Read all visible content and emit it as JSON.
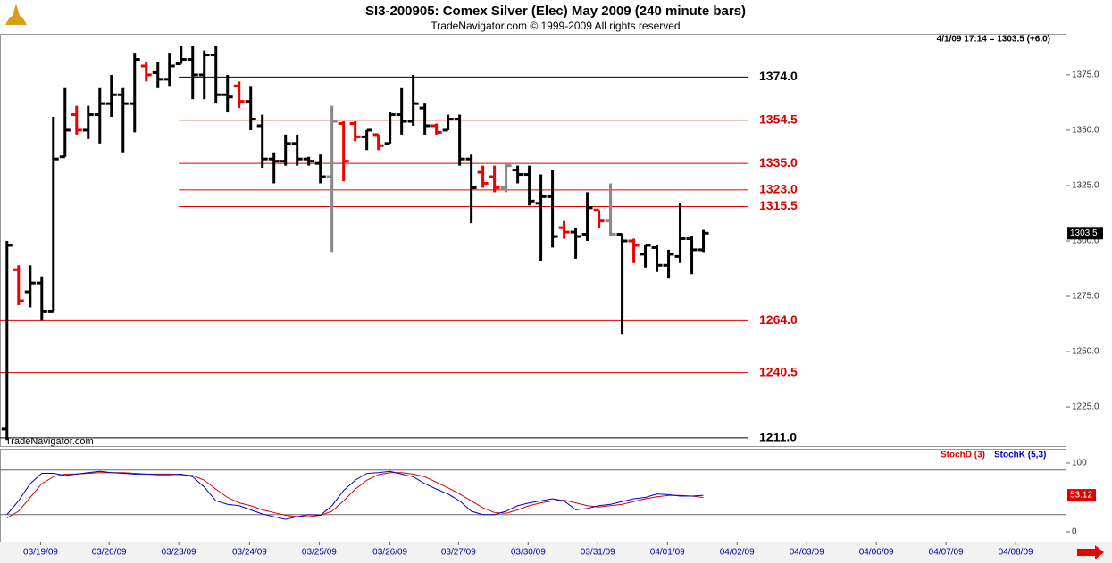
{
  "chart_data": [
    {
      "type": "ohlc",
      "title": "SI3-200905:  Comex Silver (Elec) May 2009  (240 minute bars)",
      "subtitle": "TradeNavigator.com © 1999-2009 All rights reserved",
      "info": "4/1/09 17:14 = 1303.5 (+6.0)",
      "watermark": "TradeNavigator.com",
      "open": [
        1215,
        1287,
        1277,
        1281,
        1268,
        1338,
        1357,
        1350,
        1357,
        1362,
        1366,
        1362,
        1379,
        1376,
        1373,
        1380,
        1382,
        1375,
        1384,
        1366,
        1370,
        1363,
        1352,
        1337,
        1336,
        1344,
        1337,
        1335,
        1329,
        1353,
        1353,
        1347,
        1348,
        1344,
        1357,
        1354,
        1360,
        1352,
        1350,
        1355,
        1337,
        1331,
        1329,
        1324,
        1332,
        1330,
        1317,
        1320,
        1306,
        1304,
        1303,
        1314,
        1309,
        1303,
        1300,
        1294,
        1297,
        1289,
        1293,
        1301,
        1296
      ],
      "high": [
        1300,
        1289,
        1289,
        1284,
        1356,
        1369,
        1361,
        1361,
        1369,
        1375,
        1369,
        1385,
        1381,
        1381,
        1385,
        1388,
        1388,
        1386,
        1388,
        1375,
        1372,
        1370,
        1357,
        1340,
        1348,
        1348,
        1338,
        1339,
        1361,
        1354,
        1354,
        1350,
        1348,
        1358,
        1369,
        1375,
        1362,
        1353,
        1357,
        1357,
        1339,
        1334,
        1334,
        1335,
        1334,
        1334,
        1330,
        1332,
        1309,
        1306,
        1322,
        1314,
        1326,
        1303,
        1301,
        1298,
        1298,
        1296,
        1317,
        1302,
        1305
      ],
      "low": [
        1210,
        1271,
        1270,
        1264,
        1268,
        1338,
        1348,
        1346,
        1344,
        1356,
        1340,
        1349,
        1372,
        1369,
        1370,
        1380,
        1364,
        1364,
        1362,
        1358,
        1360,
        1350,
        1333,
        1326,
        1334,
        1334,
        1334,
        1326,
        1295,
        1327,
        1345,
        1341,
        1341,
        1344,
        1348,
        1352,
        1348,
        1348,
        1350,
        1334,
        1308,
        1324,
        1322,
        1322,
        1326,
        1316,
        1291,
        1297,
        1301,
        1292,
        1300,
        1306,
        1302,
        1258,
        1290,
        1288,
        1286,
        1283,
        1290,
        1285,
        1295
      ],
      "close": [
        1298,
        1273,
        1281,
        1268,
        1337,
        1350,
        1350,
        1357,
        1362,
        1366,
        1362,
        1382,
        1375,
        1373,
        1379,
        1382,
        1375,
        1384,
        1366,
        1365,
        1363,
        1355,
        1337,
        1336,
        1344,
        1337,
        1336,
        1329,
        1354,
        1336,
        1347,
        1350,
        1343,
        1357,
        1354,
        1362,
        1352,
        1349,
        1355,
        1337,
        1324,
        1326,
        1324,
        1334,
        1330,
        1318,
        1320,
        1302,
        1304,
        1302,
        1315,
        1309,
        1303,
        1300,
        1298,
        1298,
        1289,
        1294,
        1301,
        1296,
        1303.5
      ],
      "bar_colors": [
        "#000",
        "#e00",
        "#000",
        "#000",
        "#000",
        "#000",
        "#e00",
        "#000",
        "#000",
        "#000",
        "#000",
        "#000",
        "#e00",
        "#000",
        "#000",
        "#000",
        "#000",
        "#000",
        "#000",
        "#000",
        "#e00",
        "#000",
        "#000",
        "#000",
        "#000",
        "#000",
        "#000",
        "#000",
        "#888",
        "#e00",
        "#e00",
        "#000",
        "#e00",
        "#000",
        "#000",
        "#000",
        "#000",
        "#e00",
        "#000",
        "#000",
        "#000",
        "#e00",
        "#e00",
        "#888",
        "#000",
        "#000",
        "#000",
        "#000",
        "#e00",
        "#000",
        "#000",
        "#e00",
        "#888",
        "#000",
        "#e00",
        "#000",
        "#000",
        "#000",
        "#000",
        "#000",
        "#000"
      ],
      "levels": [
        {
          "value": 1374,
          "label": "1374.0",
          "color": "#000"
        },
        {
          "value": 1354.5,
          "label": "1354.5",
          "color": "#d00"
        },
        {
          "value": 1335,
          "label": "1335.0",
          "color": "#d00"
        },
        {
          "value": 1323,
          "label": "1323.0",
          "color": "#d00"
        },
        {
          "value": 1315.5,
          "label": "1315.5",
          "color": "#d00"
        },
        {
          "value": 1264,
          "label": "1264.0",
          "color": "#d00"
        },
        {
          "value": 1240.5,
          "label": "1240.5",
          "color": "#d00"
        },
        {
          "value": 1211,
          "label": "1211.0",
          "color": "#000"
        }
      ],
      "last_price": 1303.5,
      "ylim": [
        1207.3,
        1393.5
      ],
      "yticks": [
        {
          "value": 1225,
          "label": "1225.0"
        },
        {
          "value": 1250,
          "label": "1250.0"
        },
        {
          "value": 1275,
          "label": "1275.0"
        },
        {
          "value": 1300,
          "label": "1300.0"
        },
        {
          "value": 1325,
          "label": "1325.0"
        },
        {
          "value": 1350,
          "label": "1350.0"
        },
        {
          "value": 1375,
          "label": "1375.0"
        }
      ],
      "xlim": [
        -0.6,
        91.2
      ],
      "xticks": [
        {
          "value": 2.9,
          "label": "03/19/09"
        },
        {
          "value": 8.8,
          "label": "03/20/09"
        },
        {
          "value": 14.8,
          "label": "03/23/09"
        },
        {
          "value": 20.9,
          "label": "03/24/09"
        },
        {
          "value": 26.9,
          "label": "03/25/09"
        },
        {
          "value": 33,
          "label": "03/26/09"
        },
        {
          "value": 38.9,
          "label": "03/27/09"
        },
        {
          "value": 44.9,
          "label": "03/30/09"
        },
        {
          "value": 50.9,
          "label": "03/31/09"
        },
        {
          "value": 56.9,
          "label": "04/01/09"
        },
        {
          "value": 62.9,
          "label": "04/02/09"
        },
        {
          "value": 68.9,
          "label": "04/03/09"
        },
        {
          "value": 74.9,
          "label": "04/06/09"
        },
        {
          "value": 80.9,
          "label": "04/07/09"
        },
        {
          "value": 86.9,
          "label": "04/08/09"
        }
      ]
    },
    {
      "type": "line",
      "series": [
        {
          "name": "StochD (3)",
          "color": "#d00",
          "values": [
            20,
            30,
            50,
            70,
            80,
            84,
            84,
            85,
            86,
            86,
            86,
            85,
            84,
            84,
            84,
            83,
            82,
            75,
            62,
            50,
            42,
            38,
            32,
            28,
            24,
            22,
            22,
            24,
            30,
            45,
            62,
            75,
            83,
            86,
            86,
            84,
            80,
            72,
            64,
            55,
            45,
            35,
            28,
            27,
            32,
            38,
            42,
            45,
            46,
            42,
            38,
            36,
            38,
            40,
            44,
            48,
            51,
            53,
            53,
            52,
            50
          ]
        },
        {
          "name": "StochK (5,3)",
          "color": "#00c",
          "values": [
            25,
            45,
            70,
            85,
            85,
            82,
            84,
            86,
            88,
            86,
            85,
            84,
            84,
            83,
            83,
            84,
            80,
            65,
            45,
            40,
            38,
            32,
            26,
            22,
            18,
            22,
            25,
            24,
            38,
            60,
            75,
            85,
            86,
            88,
            84,
            80,
            70,
            62,
            55,
            45,
            30,
            25,
            25,
            30,
            38,
            42,
            45,
            48,
            45,
            32,
            34,
            38,
            40,
            44,
            48,
            50,
            55,
            54,
            52,
            52,
            53.12
          ]
        }
      ],
      "last_label": 53.12,
      "levels": [
        90,
        25
      ],
      "ylim": [
        -14.3,
        120.8
      ],
      "yticks": [
        0,
        100
      ]
    }
  ]
}
